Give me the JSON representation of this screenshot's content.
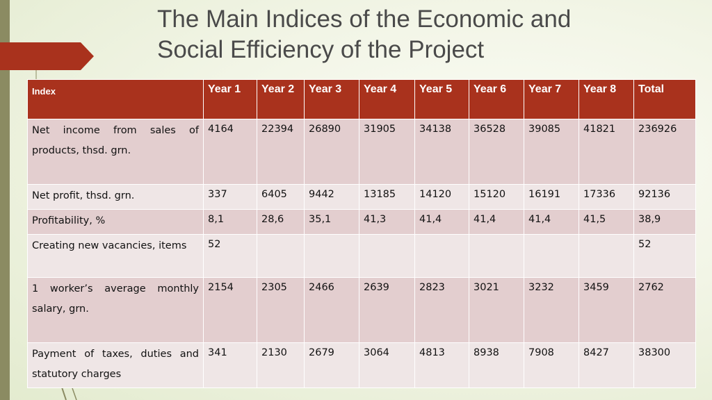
{
  "slide": {
    "title_line1": "The Main Indices of the Economic and",
    "title_line2": "Social Efficiency of the Project"
  },
  "colors": {
    "header": "#a9321d",
    "row_odd": "#e3cecf",
    "row_even": "#efe6e6",
    "accent_bar": "#8b8b62"
  },
  "table": {
    "headers": [
      "Index",
      "Year 1",
      "Year 2",
      "Year 3",
      "Year 4",
      "Year 5",
      "Year 6",
      "Year 7",
      "Year 8",
      "Total"
    ],
    "rows": [
      {
        "label": "Net income from sales of products, thsd. grn.",
        "values": [
          "4164",
          "22394",
          "26890",
          "31905",
          "34138",
          "36528",
          "39085",
          "41821",
          "236926"
        ]
      },
      {
        "label": "Net profit, thsd. grn.",
        "values": [
          "337",
          "6405",
          "9442",
          "13185",
          "14120",
          "15120",
          "16191",
          "17336",
          "92136"
        ]
      },
      {
        "label": "Profitability, %",
        "values": [
          "8,1",
          "28,6",
          "35,1",
          "41,3",
          "41,4",
          "41,4",
          "41,4",
          "41,5",
          "38,9"
        ]
      },
      {
        "label": "Creating new vacancies, items",
        "values": [
          "52",
          "",
          "",
          "",
          "",
          "",
          "",
          "",
          "52"
        ]
      },
      {
        "label": "1 worker’s average monthly salary, grn.",
        "values": [
          "2154",
          "2305",
          "2466",
          "2639",
          "2823",
          "3021",
          "3232",
          "3459",
          "2762"
        ]
      },
      {
        "label": "Payment of taxes, duties and statutory charges",
        "values": [
          "341",
          "2130",
          "2679",
          "3064",
          "4813",
          "8938",
          "7908",
          "8427",
          "38300"
        ]
      }
    ]
  }
}
